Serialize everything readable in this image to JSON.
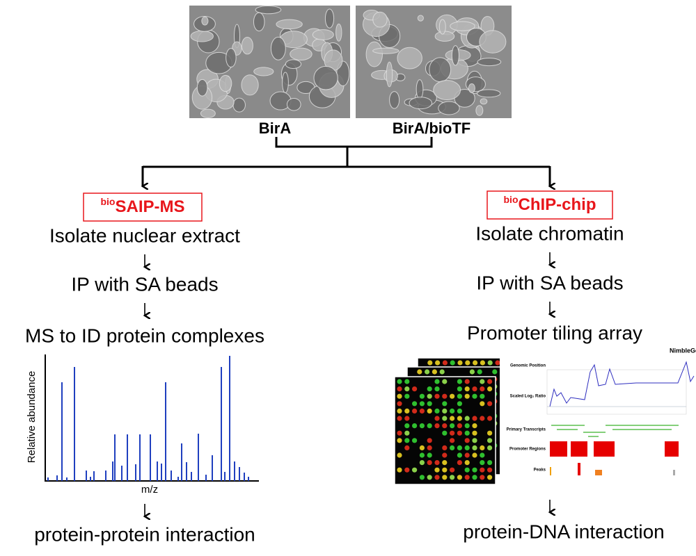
{
  "cells": [
    "BirA",
    "BirA/bioTF"
  ],
  "left": {
    "method_prefix": "bio",
    "method": "SAIP-MS",
    "steps": [
      "Isolate nuclear extract",
      "IP with SA beads",
      "MS to ID protein complexes"
    ],
    "spectrum": {
      "y_label": "Relative abundance",
      "x_label": "m/z"
    },
    "result": "protein-protein interaction"
  },
  "right": {
    "method_prefix": "bio",
    "method": "ChIP-chip",
    "steps": [
      "Isolate chromatin",
      "IP with SA beads",
      "Promoter tiling array"
    ],
    "array": {
      "logo": "NimbleGen",
      "tracks": [
        "Genomic Position",
        "Scaled Log₂ Ratio",
        "Primary Transcripts",
        "Promoter Regions",
        "Peaks"
      ]
    },
    "result": "protein-DNA interaction"
  }
}
